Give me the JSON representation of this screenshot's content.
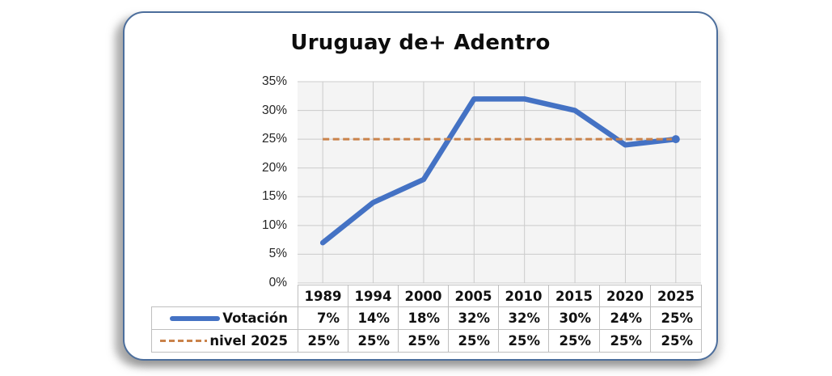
{
  "chart": {
    "title": "Uruguay de+ Adentro",
    "y_ticks": [
      "35%",
      "30%",
      "25%",
      "20%",
      "15%",
      "10%",
      "5%",
      "0%"
    ]
  },
  "chart_data": {
    "type": "line",
    "title": "Uruguay de+ Adentro",
    "categories": [
      "1989",
      "1994",
      "2000",
      "2005",
      "2010",
      "2015",
      "2020",
      "2025"
    ],
    "series": [
      {
        "name": "Votación",
        "values": [
          7,
          14,
          18,
          32,
          32,
          30,
          24,
          25
        ],
        "color": "#4472C4",
        "style": "solid",
        "end_marker": true
      },
      {
        "name": "nivel 2025",
        "values": [
          25,
          25,
          25,
          25,
          25,
          25,
          25,
          25
        ],
        "color": "#C9824A",
        "style": "dashed"
      }
    ],
    "ylim": [
      0,
      35
    ],
    "y_tick_step": 5,
    "y_tick_format": "percent",
    "grid": true,
    "plot_bg": "#f4f4f4",
    "grid_color": "#cbcbcb",
    "legend_position": "table-left"
  },
  "table": {
    "years": [
      "1989",
      "1994",
      "2000",
      "2005",
      "2010",
      "2015",
      "2020",
      "2025"
    ],
    "rows": [
      {
        "label": "Votación",
        "marker": "solid-line-marker",
        "values": [
          "7%",
          "14%",
          "18%",
          "32%",
          "32%",
          "30%",
          "24%",
          "25%"
        ]
      },
      {
        "label": "nivel 2025",
        "marker": "dashed-line-marker",
        "values": [
          "25%",
          "25%",
          "25%",
          "25%",
          "25%",
          "25%",
          "25%",
          "25%"
        ]
      }
    ]
  }
}
